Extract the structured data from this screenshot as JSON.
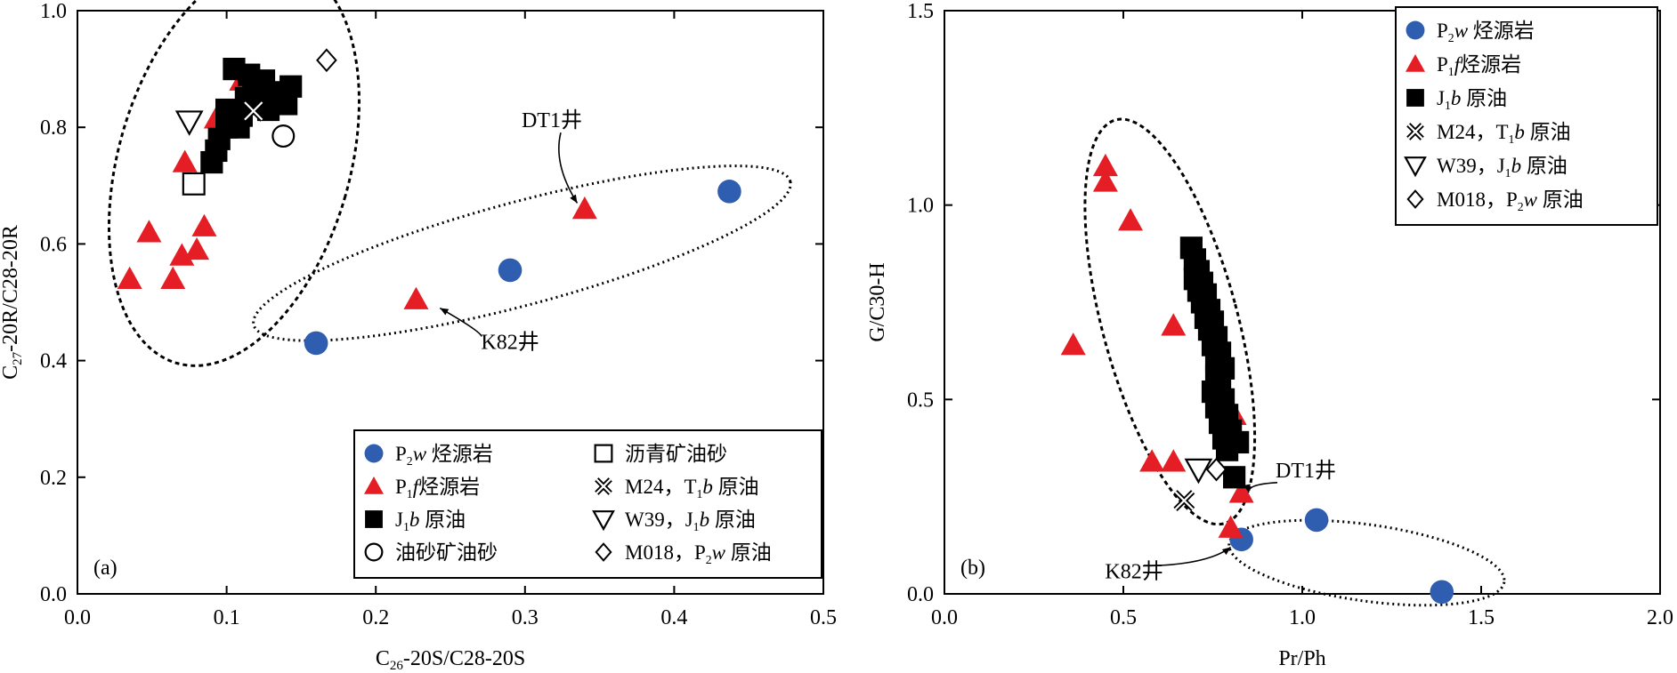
{
  "chart_data": [
    {
      "type": "scatter",
      "panel_label": "(a)",
      "xlabel": "C26-20S/C28-20S",
      "ylabel": "C27-20R/C28-20R",
      "xlim": [
        0.0,
        0.5
      ],
      "ylim": [
        0.0,
        1.0
      ],
      "xticks": [
        "0.0",
        "0.1",
        "0.2",
        "0.3",
        "0.4",
        "0.5"
      ],
      "yticks": [
        "0.0",
        "0.2",
        "0.4",
        "0.6",
        "0.8",
        "1.0"
      ],
      "legend_position": "bottom-right",
      "legend": [
        {
          "symbol": "circle",
          "color": "#2f5db0",
          "main": "P",
          "sub": "2",
          "ital": "w",
          "rest": " 烃源岩"
        },
        {
          "symbol": "triangle",
          "color": "#e51e25",
          "main": "P",
          "sub": "1",
          "ital": "f",
          "rest": "烃源岩"
        },
        {
          "symbol": "square",
          "color": "#000000",
          "main": "J",
          "sub": "1",
          "ital": "b",
          "rest": " 原油"
        },
        {
          "symbol": "open-circle",
          "color": "#000000",
          "main": "油砂矿油砂",
          "sub": "",
          "ital": "",
          "rest": ""
        },
        {
          "symbol": "open-square",
          "color": "#000000",
          "main": "沥青矿油砂",
          "sub": "",
          "ital": "",
          "rest": ""
        },
        {
          "symbol": "cross",
          "color": "#000000",
          "main": "M24，T",
          "sub": "1",
          "ital": "b",
          "rest": " 原油"
        },
        {
          "symbol": "down-triangle",
          "color": "#000000",
          "main": "W39，J",
          "sub": "1",
          "ital": "b",
          "rest": " 原油"
        },
        {
          "symbol": "diamond",
          "color": "#000000",
          "main": "M018，P",
          "sub": "2",
          "ital": "w",
          "rest": " 原油"
        }
      ],
      "series": [
        {
          "name": "P2w 烃源岩",
          "symbol": "circle",
          "color": "#2f5db0",
          "points": [
            [
              0.16,
              0.43
            ],
            [
              0.29,
              0.555
            ],
            [
              0.437,
              0.69
            ]
          ]
        },
        {
          "name": "P1f烃源岩",
          "symbol": "triangle",
          "color": "#e51e25",
          "points": [
            [
              0.035,
              0.54
            ],
            [
              0.048,
              0.62
            ],
            [
              0.064,
              0.54
            ],
            [
              0.07,
              0.58
            ],
            [
              0.072,
              0.74
            ],
            [
              0.08,
              0.59
            ],
            [
              0.085,
              0.63
            ],
            [
              0.093,
              0.815
            ],
            [
              0.11,
              0.88
            ],
            [
              0.227,
              0.505
            ],
            [
              0.34,
              0.66
            ]
          ]
        },
        {
          "name": "J1b 原油",
          "symbol": "square",
          "color": "#000000",
          "points": [
            [
              0.09,
              0.74
            ],
            [
              0.093,
              0.76
            ],
            [
              0.095,
              0.78
            ],
            [
              0.1,
              0.8
            ],
            [
              0.1,
              0.83
            ],
            [
              0.105,
              0.9
            ],
            [
              0.108,
              0.8
            ],
            [
              0.11,
              0.82
            ],
            [
              0.113,
              0.85
            ],
            [
              0.118,
              0.87
            ],
            [
              0.12,
              0.84
            ],
            [
              0.125,
              0.88
            ],
            [
              0.13,
              0.86
            ],
            [
              0.135,
              0.85
            ],
            [
              0.14,
              0.84
            ],
            [
              0.143,
              0.87
            ],
            [
              0.115,
              0.89
            ],
            [
              0.128,
              0.83
            ]
          ]
        },
        {
          "name": "油砂矿油砂",
          "symbol": "open-circle",
          "color": "#000000",
          "points": [
            [
              0.138,
              0.785
            ]
          ]
        },
        {
          "name": "沥青矿油砂",
          "symbol": "open-square",
          "color": "#000000",
          "points": [
            [
              0.078,
              0.703
            ]
          ]
        },
        {
          "name": "M24，T1b 原油",
          "symbol": "cross",
          "color": "#000000",
          "points": [
            [
              0.118,
              0.828
            ]
          ]
        },
        {
          "name": "W39，J1b 原油",
          "symbol": "down-triangle",
          "color": "#000000",
          "points": [
            [
              0.075,
              0.81
            ]
          ]
        },
        {
          "name": "M018，P2w 原油",
          "symbol": "diamond",
          "color": "#000000",
          "points": [
            [
              0.167,
              0.915
            ]
          ]
        }
      ],
      "annotations": [
        {
          "text": "DT1井",
          "at": [
            0.318,
            0.8
          ],
          "arrow_to": [
            0.335,
            0.67
          ]
        },
        {
          "text": "K82井",
          "at": [
            0.29,
            0.42
          ],
          "arrow_to": [
            0.243,
            0.49
          ]
        }
      ]
    },
    {
      "type": "scatter",
      "panel_label": "(b)",
      "xlabel": "Pr/Ph",
      "ylabel": "G/C30-H",
      "xlim": [
        0.0,
        2.0
      ],
      "ylim": [
        0.0,
        1.5
      ],
      "xticks": [
        "0.0",
        "0.5",
        "1.0",
        "1.5",
        "2.0"
      ],
      "yticks": [
        "0.0",
        "0.5",
        "1.0",
        "1.5"
      ],
      "legend_position": "top-right",
      "legend": [
        {
          "symbol": "circle",
          "color": "#2f5db0",
          "main": "P",
          "sub": "2",
          "ital": "w",
          "rest": " 烃源岩"
        },
        {
          "symbol": "triangle",
          "color": "#e51e25",
          "main": "P",
          "sub": "1",
          "ital": "f",
          "rest": "烃源岩"
        },
        {
          "symbol": "square",
          "color": "#000000",
          "main": "J",
          "sub": "1",
          "ital": "b",
          "rest": " 原油"
        },
        {
          "symbol": "cross",
          "color": "#000000",
          "main": "M24，T",
          "sub": "1",
          "ital": "b",
          "rest": " 原油"
        },
        {
          "symbol": "down-triangle",
          "color": "#000000",
          "main": "W39，J",
          "sub": "1",
          "ital": "b",
          "rest": " 原油"
        },
        {
          "symbol": "diamond",
          "color": "#000000",
          "main": "M018，P",
          "sub": "2",
          "ital": "w",
          "rest": " 原油"
        }
      ],
      "series": [
        {
          "name": "P2w 烃源岩",
          "symbol": "circle",
          "color": "#2f5db0",
          "points": [
            [
              0.83,
              0.14
            ],
            [
              1.04,
              0.19
            ],
            [
              1.39,
              0.005
            ]
          ]
        },
        {
          "name": "P1f烃源岩",
          "symbol": "triangle",
          "color": "#e51e25",
          "points": [
            [
              0.36,
              0.64
            ],
            [
              0.45,
              1.1
            ],
            [
              0.45,
              1.06
            ],
            [
              0.52,
              0.96
            ],
            [
              0.64,
              0.69
            ],
            [
              0.58,
              0.34
            ],
            [
              0.64,
              0.34
            ],
            [
              0.81,
              0.46
            ],
            [
              0.83,
              0.26
            ],
            [
              0.8,
              0.17
            ]
          ]
        },
        {
          "name": "J1b 原油",
          "symbol": "square",
          "color": "#000000",
          "points": [
            [
              0.69,
              0.89
            ],
            [
              0.7,
              0.86
            ],
            [
              0.71,
              0.83
            ],
            [
              0.7,
              0.81
            ],
            [
              0.72,
              0.8
            ],
            [
              0.71,
              0.78
            ],
            [
              0.73,
              0.77
            ],
            [
              0.72,
              0.75
            ],
            [
              0.74,
              0.73
            ],
            [
              0.73,
              0.71
            ],
            [
              0.75,
              0.7
            ],
            [
              0.74,
              0.68
            ],
            [
              0.76,
              0.66
            ],
            [
              0.75,
              0.64
            ],
            [
              0.77,
              0.62
            ],
            [
              0.76,
              0.6
            ],
            [
              0.78,
              0.58
            ],
            [
              0.76,
              0.56
            ],
            [
              0.77,
              0.53
            ],
            [
              0.75,
              0.52
            ],
            [
              0.78,
              0.5
            ],
            [
              0.76,
              0.48
            ],
            [
              0.79,
              0.46
            ],
            [
              0.77,
              0.44
            ],
            [
              0.8,
              0.42
            ],
            [
              0.78,
              0.4
            ],
            [
              0.82,
              0.39
            ],
            [
              0.79,
              0.37
            ],
            [
              0.81,
              0.3
            ]
          ]
        },
        {
          "name": "M24，T1b 原油",
          "symbol": "cross",
          "color": "#000000",
          "points": [
            [
              0.67,
              0.24
            ]
          ]
        },
        {
          "name": "W39，J1b 原油",
          "symbol": "down-triangle",
          "color": "#000000",
          "points": [
            [
              0.71,
              0.32
            ]
          ]
        },
        {
          "name": "M018，P2w 原油",
          "symbol": "diamond",
          "color": "#000000",
          "points": [
            [
              0.76,
              0.32
            ]
          ]
        }
      ],
      "annotations": [
        {
          "text": "DT1井",
          "at": [
            1.01,
            0.3
          ],
          "arrow_to": [
            0.85,
            0.26
          ]
        },
        {
          "text": "K82井",
          "at": [
            0.53,
            0.04
          ],
          "arrow_to": [
            0.8,
            0.12
          ]
        }
      ]
    }
  ]
}
